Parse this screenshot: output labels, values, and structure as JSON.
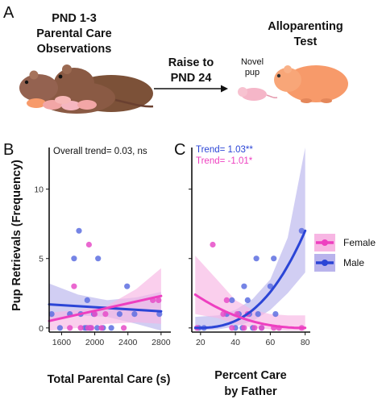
{
  "panel_letters": {
    "a": "A",
    "b": "B",
    "c": "C"
  },
  "panel_a": {
    "left_title": [
      "PND 1-3",
      "Parental Care",
      "Observations"
    ],
    "arrow_label": [
      "Raise to",
      "PND 24"
    ],
    "right_title": [
      "Alloparenting",
      "Test"
    ],
    "novel_pup_label": [
      "Novel",
      "pup"
    ]
  },
  "colors": {
    "female": "#ee3fc0",
    "female_band": "#f7b6e3",
    "male": "#2b45d6",
    "male_band": "#b9b3ec",
    "point_male": "#5d6fe0",
    "point_female": "#e64ec8",
    "adult_vole": "#8a5a44",
    "pup": "#f2a6a6",
    "test_vole": "#f79a6a"
  },
  "icons": [
    "adult-vole-icon",
    "pup-icon",
    "arrow-icon",
    "novel-pup-icon",
    "test-vole-icon"
  ],
  "legend": {
    "items": [
      "Female",
      "Male"
    ]
  },
  "chart_data": [
    {
      "type": "scatter",
      "panel": "B",
      "annotation": "Overall trend= 0.03, ns",
      "xlabel": "Total Parental Care (s)",
      "ylabel": "Pup Retrievals (Frequency)",
      "xlim": [
        1450,
        2850
      ],
      "ylim": [
        -0.3,
        13
      ],
      "xticks": [
        1600,
        2000,
        2400,
        2800
      ],
      "yticks": [
        0,
        5,
        10
      ],
      "grid": false,
      "series": [
        {
          "name": "Male",
          "points": [
            {
              "x": 1480,
              "y": 1
            },
            {
              "x": 1580,
              "y": 0
            },
            {
              "x": 1700,
              "y": 1
            },
            {
              "x": 1750,
              "y": 5
            },
            {
              "x": 1810,
              "y": 7
            },
            {
              "x": 1830,
              "y": 1
            },
            {
              "x": 1880,
              "y": 0
            },
            {
              "x": 1900,
              "y": 0
            },
            {
              "x": 1910,
              "y": 2
            },
            {
              "x": 1940,
              "y": 0
            },
            {
              "x": 1950,
              "y": 0
            },
            {
              "x": 1990,
              "y": 1
            },
            {
              "x": 2030,
              "y": 0
            },
            {
              "x": 2040,
              "y": 5
            },
            {
              "x": 2100,
              "y": 0
            },
            {
              "x": 2200,
              "y": 0
            },
            {
              "x": 2300,
              "y": 1
            },
            {
              "x": 2390,
              "y": 3
            },
            {
              "x": 2480,
              "y": 1
            },
            {
              "x": 2780,
              "y": 1
            }
          ],
          "trend": {
            "x": [
              1450,
              2800
            ],
            "y": [
              1.7,
              1.2
            ]
          },
          "band": {
            "x": [
              1450,
              1800,
              2150,
              2500,
              2800
            ],
            "lower": [
              0.6,
              0.9,
              0.8,
              0.3,
              -0.2
            ],
            "upper": [
              3.2,
              2.4,
              2.0,
              2.2,
              2.6
            ]
          }
        },
        {
          "name": "Female",
          "points": [
            {
              "x": 1700,
              "y": 0
            },
            {
              "x": 1750,
              "y": 3
            },
            {
              "x": 1830,
              "y": 0
            },
            {
              "x": 1920,
              "y": 0
            },
            {
              "x": 1930,
              "y": 6
            },
            {
              "x": 1960,
              "y": 0
            },
            {
              "x": 2000,
              "y": 1
            },
            {
              "x": 2080,
              "y": 0
            },
            {
              "x": 2130,
              "y": 1
            },
            {
              "x": 2350,
              "y": 0
            },
            {
              "x": 2700,
              "y": 2
            },
            {
              "x": 2770,
              "y": 2
            }
          ],
          "trend": {
            "x": [
              1450,
              2800
            ],
            "y": [
              0.5,
              2.3
            ]
          },
          "band": {
            "x": [
              1450,
              1800,
              2150,
              2500,
              2800
            ],
            "lower": [
              -0.2,
              0.0,
              0.3,
              0.4,
              0.3
            ],
            "upper": [
              1.1,
              1.3,
              1.6,
              2.8,
              4.3
            ]
          }
        }
      ]
    },
    {
      "type": "scatter",
      "panel": "C",
      "annotations": [
        {
          "text": "Trend= 1.03**",
          "series": "Male"
        },
        {
          "text": "Trend= -1.01*",
          "series": "Female"
        }
      ],
      "xlabel": "Percent Care\nby Father",
      "xlim": [
        15,
        82
      ],
      "ylim": [
        -0.3,
        13
      ],
      "xticks": [
        20,
        40,
        60,
        80
      ],
      "yticks": [
        0,
        5,
        10
      ],
      "grid": false,
      "legend_position": "right",
      "series": [
        {
          "name": "Male",
          "points": [
            {
              "x": 19,
              "y": 0
            },
            {
              "x": 22,
              "y": 0
            },
            {
              "x": 35,
              "y": 1
            },
            {
              "x": 38,
              "y": 2
            },
            {
              "x": 40,
              "y": 0
            },
            {
              "x": 42,
              "y": 1
            },
            {
              "x": 44,
              "y": 0
            },
            {
              "x": 45,
              "y": 3
            },
            {
              "x": 47,
              "y": 2
            },
            {
              "x": 48,
              "y": 1
            },
            {
              "x": 50,
              "y": 0
            },
            {
              "x": 52,
              "y": 5
            },
            {
              "x": 53,
              "y": 1
            },
            {
              "x": 55,
              "y": 0
            },
            {
              "x": 60,
              "y": 3
            },
            {
              "x": 62,
              "y": 5
            },
            {
              "x": 63,
              "y": 1
            },
            {
              "x": 78,
              "y": 7
            }
          ],
          "trend": {
            "x": [
              17,
              80
            ],
            "y": [
              0.0,
              7.0
            ]
          },
          "band": {
            "x": [
              17,
              30,
              40,
              50,
              60,
              70,
              80
            ],
            "lower": [
              -0.2,
              -0.1,
              0.1,
              0.5,
              1.3,
              2.5,
              4.0
            ],
            "upper": [
              0.8,
              0.9,
              1.3,
              2.1,
              3.5,
              6.5,
              13.5
            ]
          }
        },
        {
          "name": "Female",
          "points": [
            {
              "x": 18,
              "y": 0
            },
            {
              "x": 27,
              "y": 6
            },
            {
              "x": 33,
              "y": 1
            },
            {
              "x": 35,
              "y": 2
            },
            {
              "x": 38,
              "y": 0
            },
            {
              "x": 41,
              "y": 1
            },
            {
              "x": 45,
              "y": 0
            },
            {
              "x": 47,
              "y": 1
            },
            {
              "x": 51,
              "y": 0
            },
            {
              "x": 55,
              "y": 0
            },
            {
              "x": 62,
              "y": 0
            },
            {
              "x": 65,
              "y": 0
            },
            {
              "x": 78,
              "y": 0
            }
          ],
          "trend": {
            "x": [
              17,
              80
            ],
            "y": [
              2.4,
              0.0
            ]
          },
          "band": {
            "x": [
              17,
              30,
              40,
              50,
              60,
              70,
              80
            ],
            "lower": [
              1.0,
              0.7,
              0.3,
              0.0,
              -0.1,
              -0.2,
              -0.2
            ],
            "upper": [
              5.2,
              3.4,
              2.0,
              1.3,
              1.0,
              0.9,
              0.9
            ]
          }
        }
      ]
    }
  ]
}
